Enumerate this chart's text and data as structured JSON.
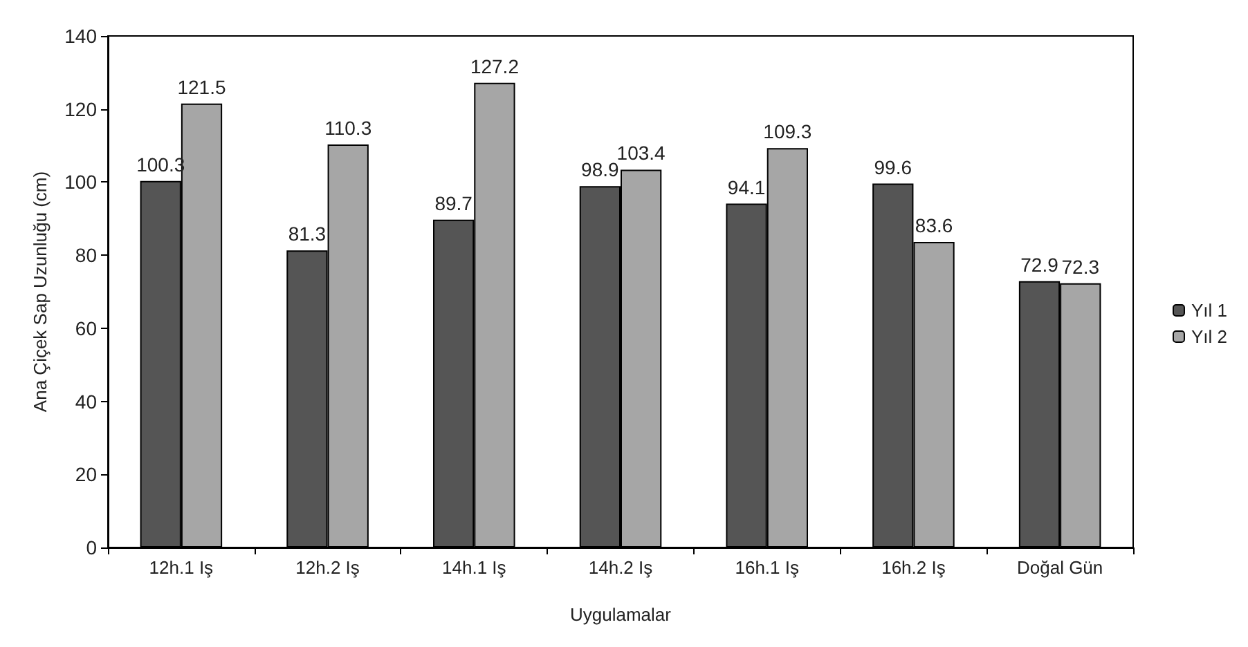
{
  "chart_data": {
    "type": "bar",
    "xlabel": "Uygulamalar",
    "ylabel": "Ana Çiçek Sap Uzunluğu (cm)",
    "categories": [
      "12h.1 Iş",
      "12h.2 Iş",
      "14h.1 Iş",
      "14h.2 Iş",
      "16h.1 Iş",
      "16h.2 Iş",
      "Doğal Gün"
    ],
    "series": [
      {
        "name": "Yıl 1",
        "color": "#555555",
        "values": [
          100.3,
          81.3,
          89.7,
          98.9,
          94.1,
          99.6,
          72.9
        ]
      },
      {
        "name": "Yıl 2",
        "color": "#a6a6a6",
        "values": [
          121.5,
          110.3,
          127.2,
          103.4,
          109.3,
          83.6,
          72.3
        ]
      }
    ],
    "ylim": [
      0,
      140
    ],
    "yticks": [
      0,
      20,
      40,
      60,
      80,
      100,
      120,
      140
    ],
    "grid": false,
    "legend": "right",
    "data_labels": true
  }
}
